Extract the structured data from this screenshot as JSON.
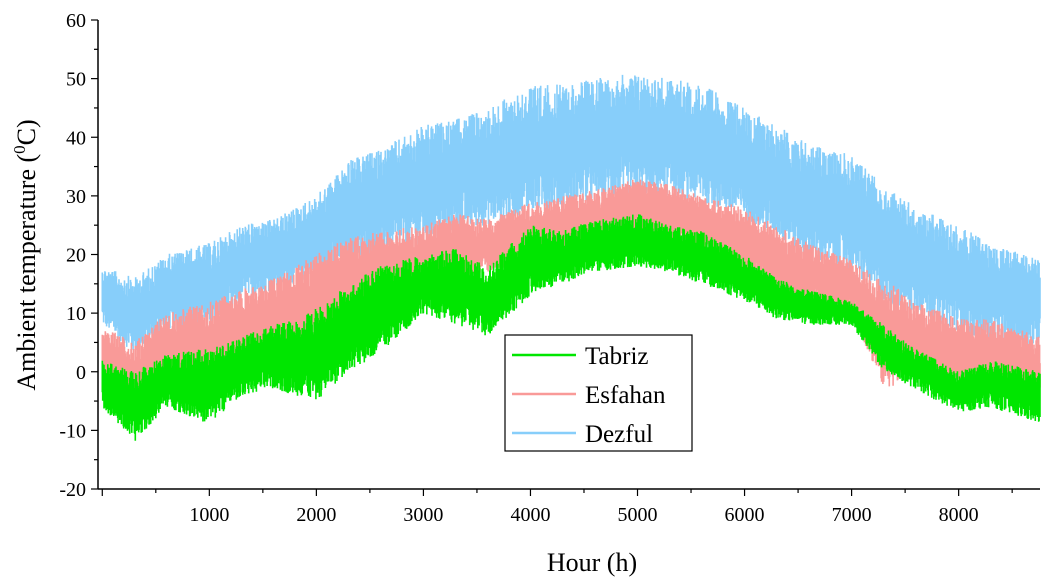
{
  "chart_data": {
    "type": "line",
    "xlabel": "Hour (h)",
    "ylabel_main": "Ambient temperature (",
    "ylabel_sup": "0",
    "ylabel_end": "C)",
    "xlim": [
      -40,
      8760
    ],
    "ylim": [
      -20,
      60
    ],
    "xticks": [
      1000,
      2000,
      3000,
      4000,
      5000,
      6000,
      7000,
      8000
    ],
    "yticks": [
      -20,
      -10,
      0,
      10,
      20,
      30,
      40,
      50,
      60
    ],
    "legend_position": "bottom-center",
    "series": [
      {
        "name": "Tabriz",
        "color": "#00e600",
        "x": [
          0,
          300,
          600,
          1000,
          1300,
          1600,
          2000,
          2300,
          2600,
          3000,
          3300,
          3600,
          4000,
          4300,
          4600,
          5000,
          5300,
          5600,
          6000,
          6300,
          6600,
          7000,
          7300,
          7600,
          8000,
          8300,
          8760
        ],
        "min": [
          -6,
          -12,
          -6,
          -9,
          -4,
          -3,
          -5,
          0,
          3,
          10,
          8,
          6,
          13,
          15,
          17,
          18,
          17,
          15,
          12,
          9,
          8,
          8,
          0,
          -3,
          -7,
          -6,
          -9
        ],
        "max": [
          2,
          0,
          3,
          4,
          6,
          8,
          11,
          15,
          18,
          20,
          21,
          18,
          25,
          24,
          26,
          27,
          25,
          24,
          20,
          16,
          14,
          12,
          8,
          4,
          0,
          2,
          0
        ]
      },
      {
        "name": "Esfahan",
        "color": "#f99a98",
        "x": [
          0,
          300,
          600,
          1000,
          1300,
          1600,
          2000,
          2300,
          2600,
          3000,
          3300,
          3600,
          4000,
          4300,
          4600,
          5000,
          5300,
          5600,
          6000,
          6300,
          6600,
          7000,
          7300,
          7600,
          8000,
          8300,
          8760
        ],
        "min": [
          -2,
          -8,
          -2,
          -4,
          0,
          2,
          4,
          8,
          10,
          13,
          15,
          17,
          18,
          19,
          20,
          22,
          21,
          20,
          17,
          13,
          11,
          10,
          -3,
          -1,
          -4,
          -3,
          -7
        ],
        "max": [
          8,
          5,
          10,
          12,
          14,
          16,
          20,
          23,
          24,
          25,
          27,
          26,
          29,
          30,
          31,
          33,
          32,
          30,
          28,
          25,
          22,
          19,
          16,
          12,
          9,
          9,
          6
        ]
      },
      {
        "name": "Dezful",
        "color": "#87cefa",
        "x": [
          0,
          300,
          600,
          1000,
          1300,
          1600,
          2000,
          2300,
          2600,
          3000,
          3300,
          3600,
          4000,
          4300,
          4600,
          5000,
          5300,
          5600,
          6000,
          6300,
          6600,
          7000,
          7300,
          7600,
          8000,
          8300,
          8760
        ],
        "min": [
          8,
          3,
          7,
          7,
          12,
          14,
          16,
          18,
          20,
          22,
          24,
          25,
          27,
          28,
          29,
          30,
          30,
          29,
          26,
          23,
          19,
          17,
          12,
          10,
          7,
          5,
          4
        ],
        "max": [
          18,
          16,
          20,
          22,
          25,
          26,
          30,
          36,
          38,
          42,
          43,
          45,
          49,
          49,
          50,
          51,
          50,
          49,
          45,
          42,
          39,
          37,
          32,
          28,
          25,
          22,
          19
        ]
      }
    ]
  }
}
